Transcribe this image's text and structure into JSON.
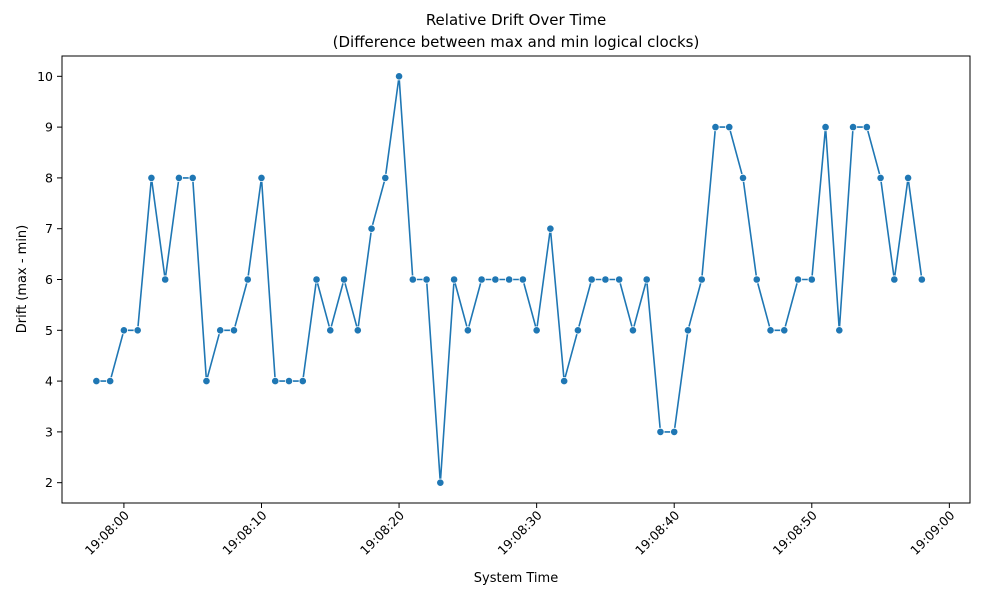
{
  "chart_data": {
    "type": "line",
    "title": "Relative Drift Over Time",
    "subtitle": "(Difference between max and min logical clocks)",
    "xlabel": "System Time",
    "ylabel": "Drift (max - min)",
    "x_start": "19:07:58",
    "x_step_seconds": 1,
    "values": [
      4,
      4,
      5,
      5,
      8,
      6,
      8,
      8,
      4,
      5,
      5,
      6,
      8,
      4,
      4,
      4,
      6,
      5,
      6,
      5,
      7,
      8,
      10,
      6,
      6,
      2,
      6,
      5,
      6,
      6,
      6,
      6,
      5,
      7,
      4,
      5,
      6,
      6,
      6,
      5,
      6,
      3,
      3,
      5,
      6,
      9,
      9,
      8,
      6,
      5,
      5,
      6,
      6,
      9,
      5,
      9,
      9,
      8,
      6,
      8,
      6
    ],
    "xlim": [
      "19:07:55.5",
      "19:09:01.5"
    ],
    "ylim": [
      1.6,
      10.4
    ],
    "x_ticks": [
      "19:08:00",
      "19:08:10",
      "19:08:20",
      "19:08:30",
      "19:08:40",
      "19:08:50",
      "19:09:00"
    ],
    "y_ticks": [
      2,
      3,
      4,
      5,
      6,
      7,
      8,
      9,
      10
    ],
    "x_tick_rotation": 45,
    "grid": false,
    "legend": "none",
    "line_color": "#1f77b4",
    "marker": "circle"
  }
}
